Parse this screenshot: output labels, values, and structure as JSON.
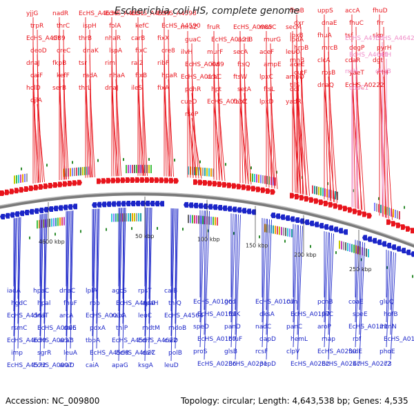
{
  "title": "Escherichia coli HS, complete genome",
  "footer": {
    "accession": "Accession: NC_009800",
    "summary": "Topology: circular; Length: 4,643,538 bp; Genes: 4,535"
  },
  "colors": {
    "forward_strand": "#e8141c",
    "reverse_strand": "#1b25c8",
    "rna_genes": "#f08cc8",
    "backbone": "#808080",
    "tick": "#2a8a2a"
  },
  "ticks": [
    "4600 kbp",
    "50 kbp",
    "100 kbp",
    "150 kbp",
    "200 kbp",
    "250 kbp"
  ],
  "forward_labels": [
    "yjjG",
    "nadR",
    "EcHS_A4636",
    "EcHS_A4601",
    "EcHS_A4599",
    "EcHS_A4598",
    "trpR",
    "thrC",
    "ispH",
    "folA",
    "kefC",
    "EcHS_A4590",
    "EcHS_A4589",
    "slt",
    "thrB",
    "nhaR",
    "carB",
    "fixX",
    "deoD",
    "creC",
    "dnaK",
    "lspA",
    "fixC",
    "cre8",
    "dnaJ",
    "fkpB",
    "tsr",
    "riml",
    "ral2",
    "ribF",
    "caiF",
    "kefF",
    "radA",
    "nhaA",
    "fixB",
    "hpaR",
    "holD",
    "serB",
    "thrL",
    "dnaJ",
    "ileS",
    "fixA",
    "djlA",
    "mraZ",
    "fruR",
    "EcHS_A0085",
    "murC",
    "secM",
    "guaC",
    "EcHS_A0123",
    "acnB",
    "murG",
    "lpdA",
    "ilvH",
    "murF",
    "secA",
    "aceF",
    "leuO",
    "EcHS_A0069",
    "ilvI",
    "ftsQ",
    "ampE",
    "aceE",
    "EcHS_A0131",
    "araC",
    "ftsW",
    "lpxC",
    "ampD",
    "pdhR",
    "hpt",
    "setA",
    "ftsL",
    "ddl",
    "cueO",
    "EcHS_A0136",
    "fabZ",
    "lpxD",
    "yadR",
    "rseP",
    "fhuB",
    "uppS",
    "accA",
    "fhuD",
    "dxr",
    "dnaE",
    "fhuC",
    "frr",
    "lpxB",
    "fhuA",
    "tsf",
    "skp",
    "hrpB",
    "mrcB",
    "degP",
    "pyrH",
    "rnhB",
    "clcA",
    "cdaR",
    "dgt",
    "cutF",
    "rpsB",
    "yaeT",
    "rrlH",
    "tilS",
    "dnaQ",
    "EcHS_A0222"
  ],
  "rna_labels": [
    "EcHS_A4731",
    "EcHS_A4642",
    "EcHS_A4641",
    "rrfH",
    "rrsH",
    "dkgB",
    "cdaC1"
  ],
  "reverse_labels": [
    "iadA",
    "hpaC",
    "dnaC",
    "lplA",
    "agcS",
    "rpsT",
    "caiB",
    "hgdC",
    "hpal",
    "fhuF",
    "rob",
    "EcHS_A4640",
    "apaH",
    "thiQ",
    "EcHS_A4563",
    "dnaT",
    "arcA",
    "EcHS_A0034",
    "rapA",
    "leuC",
    "EcHS_A4564",
    "rsmC",
    "EcHS_A0006",
    "caiE",
    "pdxA",
    "thiP",
    "mdtM",
    "mdoB",
    "EcHS_A4630",
    "EcHS_A0037",
    "araB",
    "tbpA",
    "EcHS_A4567",
    "EcHS_A4622",
    "caiD",
    "imp",
    "sgrR",
    "leuA",
    "EcHS_A4568",
    "EcHS_A4627",
    "caiC",
    "polB",
    "EcHS_A4572",
    "EcHS_A0007",
    "araD",
    "caiA",
    "apaG",
    "ksgA",
    "leuD",
    "EcHS_A0106",
    "gcd",
    "EcHS_A0107",
    "can",
    "pcnB",
    "coaE",
    "gluQ",
    "EcHS_A0161",
    "folK",
    "dksA",
    "EcHS_A0197",
    "pilC",
    "speE",
    "hofB",
    "speD",
    "panD",
    "nadC",
    "panC",
    "aroP",
    "EcHS_A0121",
    "mtnN",
    "EcHS_A0167",
    "btuF",
    "dapD",
    "hemL",
    "map",
    "rof",
    "EcHS_A0192",
    "proS",
    "glsB",
    "rcsF",
    "clpV",
    "EcHS_A0230",
    "fadE",
    "phoE",
    "EcHS_A0236",
    "EcHS_A0231",
    "pepD",
    "EcHS_A0282",
    "EcHS_A0247",
    "EcHS_A0273",
    "c2"
  ]
}
